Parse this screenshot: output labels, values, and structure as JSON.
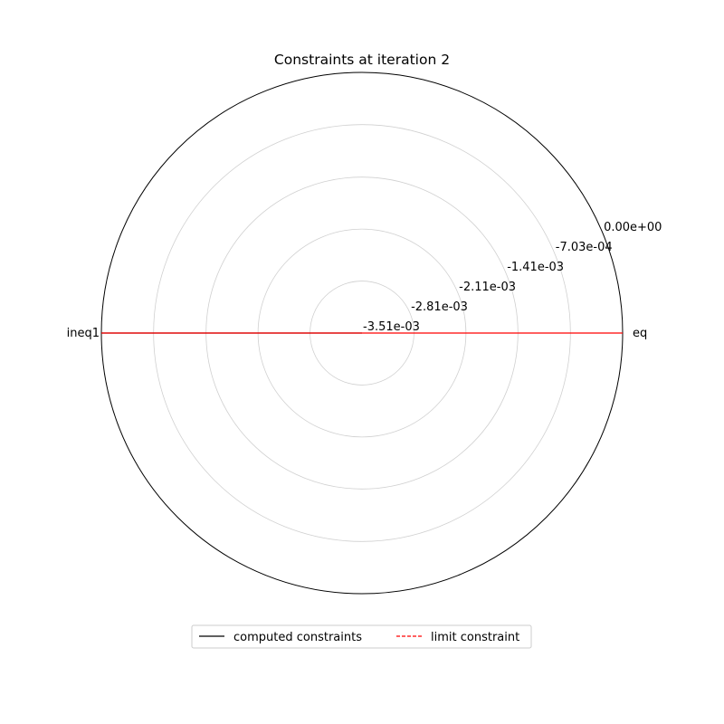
{
  "chart_data": {
    "type": "radar",
    "title": "Constraints at iteration 2",
    "categories": [
      "eq",
      "ineq1"
    ],
    "radial_ticks": [
      "-3.51e-03",
      "-2.81e-03",
      "-2.11e-03",
      "-1.41e-03",
      "-7.03e-04",
      "0.00e+00"
    ],
    "rlim": [
      -0.00351,
      0.0
    ],
    "grid": true,
    "legend_position": "bottom",
    "series": [
      {
        "name": "computed constraints",
        "values": [
          -0.00351,
          0.0
        ],
        "color": "#000000",
        "style": "solid"
      },
      {
        "name": "limit constraint",
        "values": [
          0.0,
          0.0
        ],
        "color": "#ff0000",
        "style": "dashed"
      }
    ]
  }
}
